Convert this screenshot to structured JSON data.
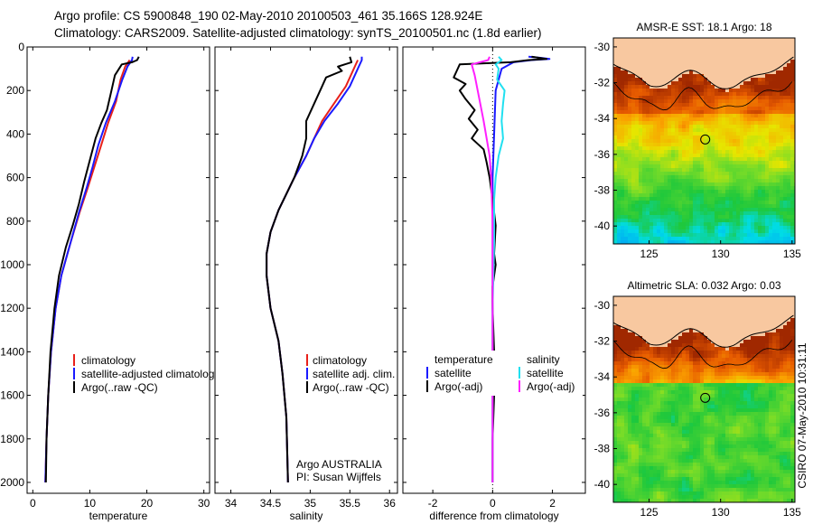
{
  "header": {
    "line1": "Argo profile: CS 5900848_190 02-May-2010 20100503_461 35.166S 128.924E",
    "line2": "Climatology: CARS2009. Satellite-adjusted climatology: synTS_20100501.nc (1.8d earlier)"
  },
  "colors": {
    "climatology": "#e8201a",
    "satellite": "#1a1aff",
    "argo": "#000000",
    "salinity_satellite": "#20e0f0",
    "salinity_argo": "#ff20ff",
    "land": "#f8c8a0"
  },
  "chart_data": [
    {
      "type": "line",
      "name": "temperature-profile",
      "xlabel": "temperature",
      "ylabel": "",
      "xlim": [
        -1,
        31
      ],
      "ylim": [
        2050,
        0
      ],
      "x_ticks": [
        0,
        10,
        20,
        30
      ],
      "y_ticks": [
        0,
        200,
        400,
        600,
        800,
        1000,
        1200,
        1400,
        1600,
        1800,
        2000
      ],
      "legend": {
        "position": "bottom-right",
        "entries": [
          "climatology",
          "satellite-adjusted climatology",
          "Argo(..raw -QC)"
        ]
      },
      "series": [
        {
          "name": "climatology",
          "color": "#e8201a",
          "points": [
            [
              17.0,
              60
            ],
            [
              16.2,
              90
            ],
            [
              15.4,
              150
            ],
            [
              14.6,
              250
            ],
            [
              13.2,
              350
            ],
            [
              12.0,
              450
            ],
            [
              10.8,
              550
            ],
            [
              9.6,
              650
            ],
            [
              8.2,
              760
            ],
            [
              6.6,
              900
            ],
            [
              5.0,
              1050
            ],
            [
              4.0,
              1200
            ],
            [
              3.2,
              1400
            ],
            [
              2.7,
              1600
            ],
            [
              2.4,
              1800
            ],
            [
              2.2,
              2000
            ]
          ]
        },
        {
          "name": "satellite-adjusted climatology",
          "color": "#1a1aff",
          "points": [
            [
              17.5,
              45
            ],
            [
              17.4,
              60
            ],
            [
              16.6,
              90
            ],
            [
              15.7,
              150
            ],
            [
              14.4,
              250
            ],
            [
              12.8,
              350
            ],
            [
              11.5,
              450
            ],
            [
              10.5,
              550
            ],
            [
              9.4,
              650
            ],
            [
              8.1,
              760
            ],
            [
              6.6,
              900
            ],
            [
              5.0,
              1050
            ],
            [
              4.0,
              1200
            ],
            [
              3.2,
              1400
            ],
            [
              2.7,
              1600
            ],
            [
              2.4,
              1800
            ],
            [
              2.2,
              2000
            ]
          ]
        },
        {
          "name": "Argo(..raw -QC)",
          "color": "#000000",
          "points": [
            [
              18.6,
              45
            ],
            [
              18.3,
              60
            ],
            [
              17.4,
              70
            ],
            [
              15.6,
              80
            ],
            [
              14.4,
              130
            ],
            [
              13.8,
              200
            ],
            [
              13.0,
              290
            ],
            [
              12.0,
              350
            ],
            [
              11.0,
              420
            ],
            [
              10.2,
              500
            ],
            [
              9.0,
              620
            ],
            [
              8.1,
              720
            ],
            [
              7.0,
              820
            ],
            [
              5.8,
              920
            ],
            [
              4.6,
              1050
            ],
            [
              3.8,
              1200
            ],
            [
              3.1,
              1400
            ],
            [
              2.7,
              1600
            ],
            [
              2.4,
              1800
            ],
            [
              2.3,
              2000
            ]
          ]
        }
      ]
    },
    {
      "type": "line",
      "name": "salinity-profile",
      "xlabel": "salinity",
      "ylabel": "",
      "xlim": [
        33.8,
        36.1
      ],
      "ylim": [
        2050,
        0
      ],
      "x_ticks": [
        34,
        34.5,
        35,
        35.5,
        36
      ],
      "legend": {
        "position": "bottom-right",
        "entries": [
          "climatology",
          "satellite adj. clim.",
          "Argo(..raw -QC)"
        ]
      },
      "annotations": [
        "Argo AUSTRALIA",
        "PI: Susan Wijffels"
      ],
      "series": [
        {
          "name": "climatology",
          "color": "#e8201a",
          "points": [
            [
              35.6,
              60
            ],
            [
              35.55,
              100
            ],
            [
              35.45,
              180
            ],
            [
              35.3,
              260
            ],
            [
              35.15,
              340
            ],
            [
              35.05,
              420
            ],
            [
              34.95,
              500
            ],
            [
              34.8,
              600
            ],
            [
              34.6,
              750
            ],
            [
              34.5,
              850
            ],
            [
              34.45,
              950
            ],
            [
              34.45,
              1050
            ],
            [
              34.5,
              1200
            ],
            [
              34.6,
              1350
            ],
            [
              34.65,
              1500
            ],
            [
              34.7,
              1700
            ],
            [
              34.72,
              2000
            ]
          ]
        },
        {
          "name": "satellite adj. clim.",
          "color": "#1a1aff",
          "points": [
            [
              35.65,
              45
            ],
            [
              35.65,
              60
            ],
            [
              35.6,
              100
            ],
            [
              35.5,
              180
            ],
            [
              35.35,
              260
            ],
            [
              35.18,
              340
            ],
            [
              35.05,
              420
            ],
            [
              34.95,
              500
            ],
            [
              34.8,
              600
            ],
            [
              34.6,
              750
            ],
            [
              34.5,
              850
            ],
            [
              34.45,
              950
            ],
            [
              34.45,
              1050
            ],
            [
              34.5,
              1200
            ],
            [
              34.6,
              1350
            ],
            [
              34.65,
              1500
            ],
            [
              34.7,
              1700
            ],
            [
              34.72,
              2000
            ]
          ]
        },
        {
          "name": "Argo(..raw -QC)",
          "color": "#000000",
          "points": [
            [
              35.5,
              45
            ],
            [
              35.52,
              70
            ],
            [
              35.35,
              90
            ],
            [
              35.4,
              110
            ],
            [
              35.2,
              140
            ],
            [
              35.15,
              180
            ],
            [
              35.05,
              260
            ],
            [
              34.95,
              340
            ],
            [
              34.95,
              420
            ],
            [
              34.9,
              500
            ],
            [
              34.8,
              600
            ],
            [
              34.6,
              750
            ],
            [
              34.5,
              850
            ],
            [
              34.45,
              950
            ],
            [
              34.45,
              1050
            ],
            [
              34.5,
              1200
            ],
            [
              34.6,
              1350
            ],
            [
              34.65,
              1500
            ],
            [
              34.7,
              1700
            ],
            [
              34.72,
              2000
            ]
          ]
        }
      ]
    },
    {
      "type": "line",
      "name": "difference-from-climatology",
      "xlabel": "difference from climatology",
      "ylabel": "",
      "xlim": [
        -3,
        3.1
      ],
      "ylim": [
        2050,
        0
      ],
      "x_ticks": [
        -2,
        0,
        2
      ],
      "legend": {
        "position": "bottom-right",
        "headers": [
          "temperature",
          "salinity"
        ],
        "entries": [
          "satellite",
          "Argo(-adj)",
          "satellite",
          "Argo(-adj)"
        ]
      },
      "series": [
        {
          "name": "temperature satellite",
          "color": "#1a1aff",
          "points": [
            [
              1.2,
              45
            ],
            [
              1.6,
              50
            ],
            [
              1.9,
              55
            ],
            [
              1.3,
              60
            ],
            [
              0.7,
              70
            ],
            [
              0.3,
              100
            ],
            [
              0.1,
              200
            ],
            [
              0.05,
              400
            ],
            [
              0.0,
              600
            ],
            [
              0.0,
              1000
            ],
            [
              0.0,
              2000
            ]
          ]
        },
        {
          "name": "temperature Argo(-adj)",
          "color": "#000000",
          "points": [
            [
              1.3,
              45
            ],
            [
              1.8,
              55
            ],
            [
              1.2,
              60
            ],
            [
              0.6,
              70
            ],
            [
              -1.1,
              80
            ],
            [
              -1.2,
              110
            ],
            [
              -1.3,
              140
            ],
            [
              -0.9,
              170
            ],
            [
              -1.1,
              200
            ],
            [
              -0.9,
              240
            ],
            [
              -0.6,
              290
            ],
            [
              -0.8,
              330
            ],
            [
              -0.5,
              380
            ],
            [
              -0.7,
              420
            ],
            [
              -0.3,
              470
            ],
            [
              -0.2,
              530
            ],
            [
              -0.1,
              600
            ],
            [
              0.0,
              700
            ],
            [
              0.1,
              820
            ],
            [
              0.05,
              950
            ],
            [
              0.1,
              1000
            ],
            [
              0.0,
              1100
            ],
            [
              0.0,
              1200
            ],
            [
              0.05,
              1400
            ],
            [
              0.05,
              1600
            ],
            [
              0.0,
              1800
            ],
            [
              0.0,
              2000
            ]
          ]
        },
        {
          "name": "salinity satellite",
          "color": "#20e0f0",
          "points": [
            [
              0.2,
              45
            ],
            [
              0.3,
              60
            ],
            [
              0.1,
              80
            ],
            [
              0.2,
              100
            ],
            [
              0.15,
              150
            ],
            [
              0.4,
              200
            ],
            [
              0.35,
              260
            ],
            [
              0.3,
              340
            ],
            [
              0.35,
              420
            ],
            [
              0.2,
              500
            ],
            [
              0.1,
              600
            ],
            [
              0.05,
              700
            ],
            [
              0.05,
              900
            ],
            [
              0.0,
              1200
            ],
            [
              0.0,
              1600
            ],
            [
              0.0,
              2000
            ]
          ]
        },
        {
          "name": "salinity Argo(-adj)",
          "color": "#ff20ff",
          "points": [
            [
              -0.1,
              45
            ],
            [
              -0.15,
              60
            ],
            [
              -0.7,
              80
            ],
            [
              -0.6,
              130
            ],
            [
              -0.5,
              200
            ],
            [
              -0.4,
              270
            ],
            [
              -0.3,
              340
            ],
            [
              -0.2,
              420
            ],
            [
              -0.1,
              500
            ],
            [
              -0.05,
              600
            ],
            [
              0.0,
              800
            ],
            [
              0.0,
              1200
            ],
            [
              0.0,
              1600
            ],
            [
              0.0,
              2000
            ]
          ]
        }
      ]
    },
    {
      "type": "heatmap",
      "name": "amsre-sst-map",
      "title": "AMSR-E SST: 18.1 Argo: 18",
      "xlim": [
        122.5,
        135.2
      ],
      "ylim": [
        -41,
        -29.5
      ],
      "x_ticks": [
        125,
        130,
        135
      ],
      "y_ticks": [
        -30,
        -32,
        -34,
        -36,
        -38,
        -40
      ],
      "marker": {
        "lon": 128.924,
        "lat": -35.166
      }
    },
    {
      "type": "heatmap",
      "name": "altimetric-sla-map",
      "title": "Altimetric SLA: 0.032 Argo: 0.03",
      "xlim": [
        122.5,
        135.2
      ],
      "ylim": [
        -41,
        -29.5
      ],
      "x_ticks": [
        125,
        130,
        135
      ],
      "y_ticks": [
        -30,
        -32,
        -34,
        -36,
        -38,
        -40
      ],
      "marker": {
        "lon": 128.924,
        "lat": -35.166
      }
    }
  ],
  "footer": {
    "timestamp": "CSIRO 07-May-2010 10:31:11"
  }
}
